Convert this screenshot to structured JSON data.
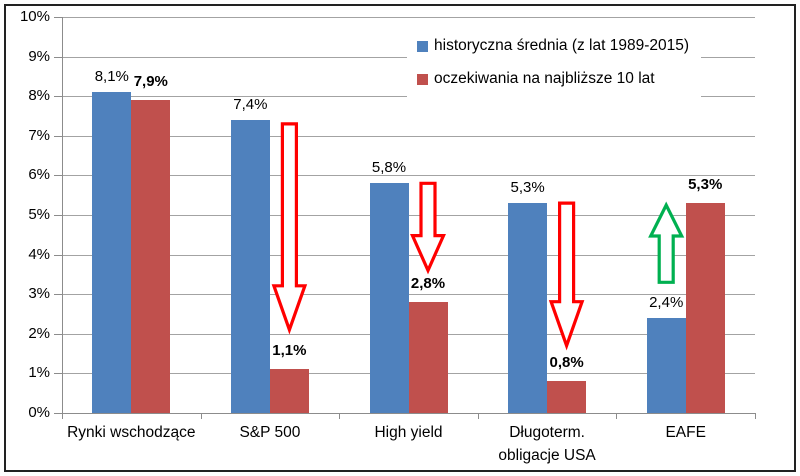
{
  "chart_data": {
    "type": "bar",
    "title": "",
    "categories": [
      "Rynki wschodzące",
      "S&P 500",
      "High yield",
      "Długoterm.\nobligacje USA",
      "EAFE"
    ],
    "series": [
      {
        "name": "historyczna średnia (z lat 1989-2015)",
        "color": "#4F81BD",
        "values": [
          8.1,
          7.4,
          5.8,
          5.3,
          2.4
        ],
        "data_labels": [
          "8,1%",
          "7,4%",
          "5,8%",
          "5,3%",
          "2,4%"
        ],
        "bold_labels": false
      },
      {
        "name": "oczekiwania na najbliższe 10 lat",
        "color": "#C0504D",
        "values": [
          7.9,
          1.1,
          2.8,
          0.8,
          5.3
        ],
        "data_labels": [
          "7,9%",
          "1,1%",
          "2,8%",
          "0,8%",
          "5,3%"
        ],
        "bold_labels": true
      }
    ],
    "y_axis": {
      "min": 0,
      "max": 10,
      "step": 1,
      "tick_labels": [
        "0%",
        "1%",
        "2%",
        "3%",
        "4%",
        "5%",
        "6%",
        "7%",
        "8%",
        "9%",
        "10%"
      ]
    },
    "xlabel": "",
    "ylabel": "",
    "grid": true,
    "legend_position": "top-right",
    "arrows": [
      {
        "category_index": 1,
        "series_index": 1,
        "direction": "down",
        "color": "#FF0000",
        "from_pct": 7.3,
        "to_pct": 2.1
      },
      {
        "category_index": 2,
        "series_index": 1,
        "direction": "down",
        "color": "#FF0000",
        "from_pct": 5.8,
        "to_pct": 3.6
      },
      {
        "category_index": 3,
        "series_index": 1,
        "direction": "down",
        "color": "#FF0000",
        "from_pct": 5.3,
        "to_pct": 1.7
      },
      {
        "category_index": 4,
        "series_index": 0,
        "direction": "up",
        "color": "#00B050",
        "from_pct": 3.3,
        "to_pct": 5.25
      }
    ]
  },
  "styles": {
    "grid_color": "#A3A3A3",
    "axis_color": "#8C8C8C",
    "text_color": "#000000",
    "background": "#FFFFFF",
    "border_color": "#222222"
  }
}
